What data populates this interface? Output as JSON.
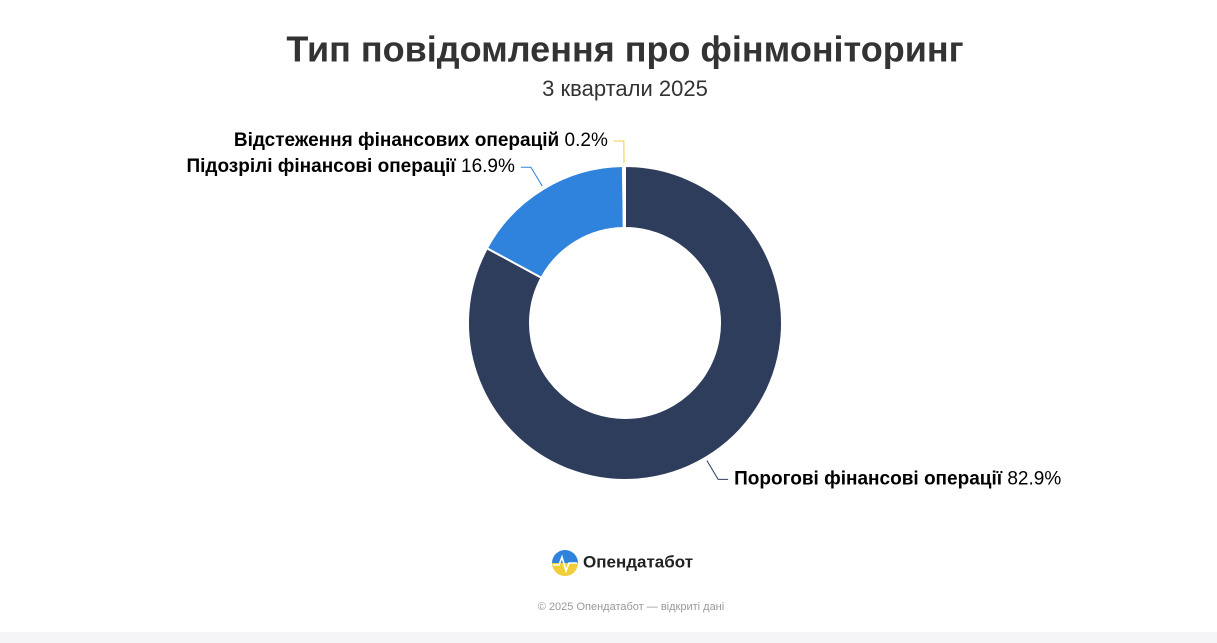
{
  "chart_data": {
    "type": "donut",
    "title": "Тип повідомлення про фінмоніторинг",
    "subtitle": "3 квартали 2025",
    "categories": [
      "Порогові фінансові операції",
      "Підозрілі фінансові операції",
      "Відстеження фінансових операцій"
    ],
    "values": [
      82.9,
      16.9,
      0.2
    ],
    "value_labels": [
      "82.9%",
      "16.9%",
      "0.2%"
    ],
    "colors": [
      "#2e3d5c",
      "#2f83dc",
      "#f2cf3a"
    ]
  },
  "footer": {
    "brand": "Опендатабот",
    "copyright": "© 2025 Опендатабот — відкриті дані"
  }
}
